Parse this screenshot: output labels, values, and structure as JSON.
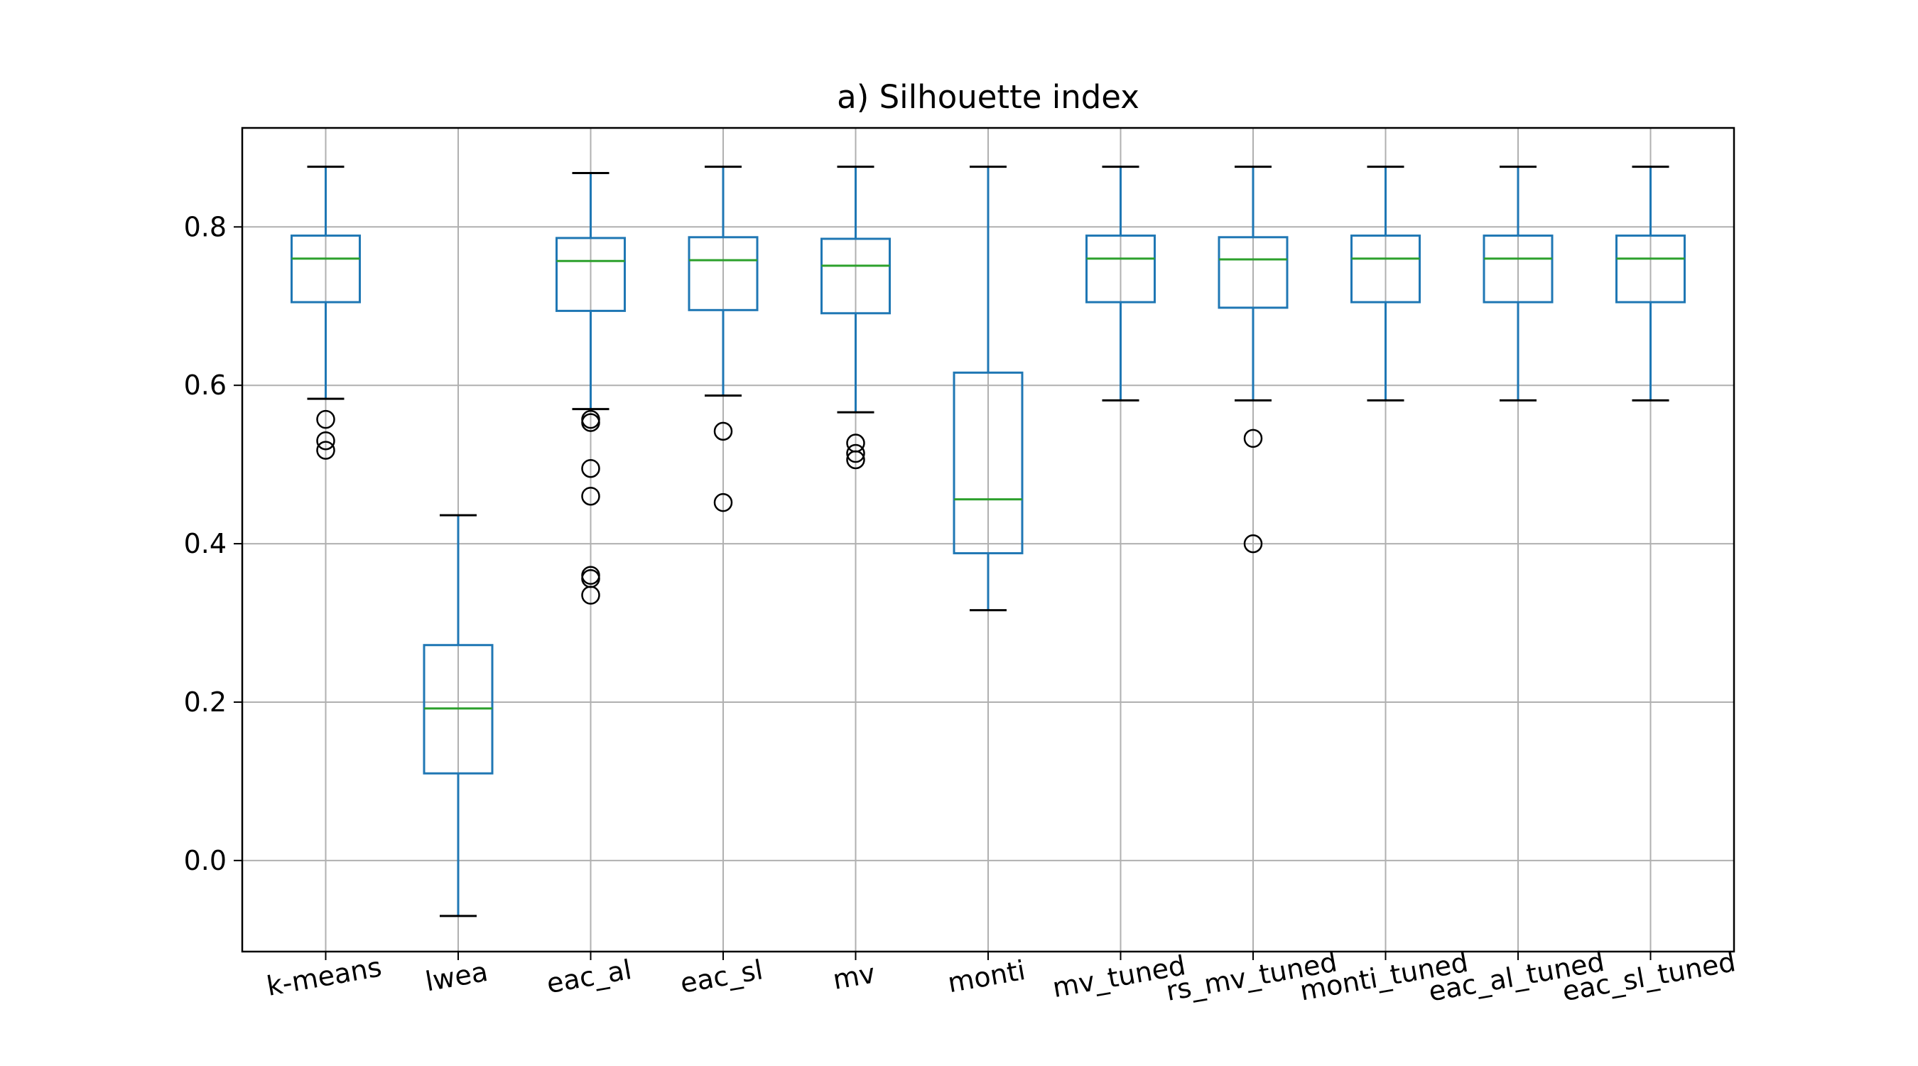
{
  "chart_data": {
    "type": "box",
    "title": "a) Silhouette index",
    "xlabel": "",
    "ylabel": "",
    "ylim": [
      -0.115,
      0.925
    ],
    "yticks": [
      0.0,
      0.2,
      0.4,
      0.6,
      0.8
    ],
    "ytick_labels": [
      "0.0",
      "0.2",
      "0.4",
      "0.6",
      "0.8"
    ],
    "grid": true,
    "categories": [
      "k-means",
      "lwea",
      "eac_al",
      "eac_sl",
      "mv",
      "monti",
      "mv_tuned",
      "rs_mv_tuned",
      "monti_tuned",
      "eac_al_tuned",
      "eac_sl_tuned"
    ],
    "boxes": [
      {
        "name": "k-means",
        "whisker_low": 0.583,
        "q1": 0.705,
        "median": 0.76,
        "q3": 0.789,
        "whisker_high": 0.876,
        "outliers": [
          0.557,
          0.53,
          0.518
        ]
      },
      {
        "name": "lwea",
        "whisker_low": -0.07,
        "q1": 0.11,
        "median": 0.192,
        "q3": 0.272,
        "whisker_high": 0.436,
        "outliers": []
      },
      {
        "name": "eac_al",
        "whisker_low": 0.57,
        "q1": 0.694,
        "median": 0.757,
        "q3": 0.786,
        "whisker_high": 0.868,
        "outliers": [
          0.557,
          0.553,
          0.495,
          0.46,
          0.36,
          0.356,
          0.335
        ]
      },
      {
        "name": "eac_sl",
        "whisker_low": 0.587,
        "q1": 0.695,
        "median": 0.758,
        "q3": 0.787,
        "whisker_high": 0.876,
        "outliers": [
          0.542,
          0.452
        ]
      },
      {
        "name": "mv",
        "whisker_low": 0.566,
        "q1": 0.691,
        "median": 0.751,
        "q3": 0.785,
        "whisker_high": 0.876,
        "outliers": [
          0.527,
          0.514,
          0.506
        ]
      },
      {
        "name": "monti",
        "whisker_low": 0.316,
        "q1": 0.388,
        "median": 0.456,
        "q3": 0.616,
        "whisker_high": 0.876,
        "outliers": []
      },
      {
        "name": "mv_tuned",
        "whisker_low": 0.581,
        "q1": 0.705,
        "median": 0.76,
        "q3": 0.789,
        "whisker_high": 0.876,
        "outliers": []
      },
      {
        "name": "rs_mv_tuned",
        "whisker_low": 0.581,
        "q1": 0.698,
        "median": 0.759,
        "q3": 0.787,
        "whisker_high": 0.876,
        "outliers": [
          0.533,
          0.4
        ]
      },
      {
        "name": "monti_tuned",
        "whisker_low": 0.581,
        "q1": 0.705,
        "median": 0.76,
        "q3": 0.789,
        "whisker_high": 0.876,
        "outliers": []
      },
      {
        "name": "eac_al_tuned",
        "whisker_low": 0.581,
        "q1": 0.705,
        "median": 0.76,
        "q3": 0.789,
        "whisker_high": 0.876,
        "outliers": []
      },
      {
        "name": "eac_sl_tuned",
        "whisker_low": 0.581,
        "q1": 0.705,
        "median": 0.76,
        "q3": 0.789,
        "whisker_high": 0.876,
        "outliers": []
      }
    ],
    "colors": {
      "box": "#1f77b4",
      "median": "#2ca02c",
      "whisker": "#1f77b4",
      "cap": "#000000",
      "outlier": "#000000",
      "grid": "#b0b0b0",
      "frame": "#000000"
    }
  }
}
